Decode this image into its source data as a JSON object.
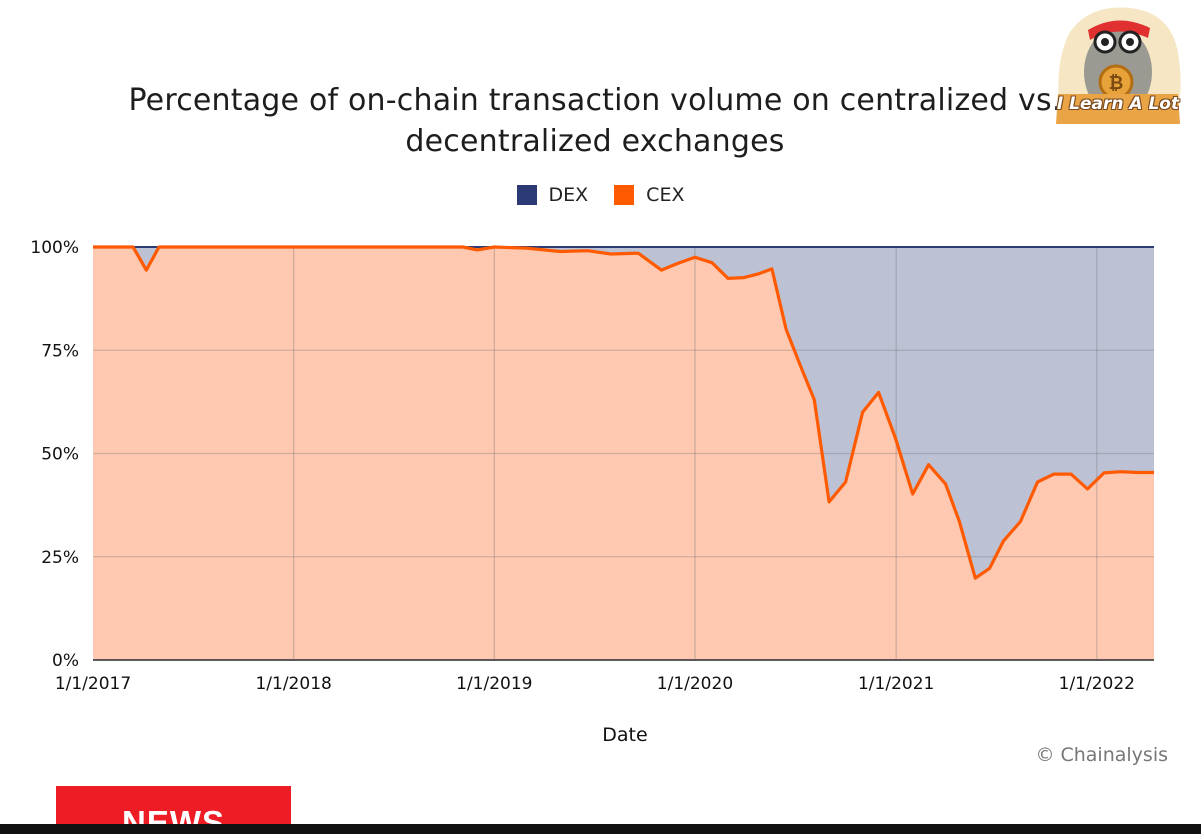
{
  "chart_data": {
    "type": "area",
    "title": "Percentage of on-chain transaction volume on centralized vs. decentralized exchanges",
    "xlabel": "Date",
    "ylabel": "",
    "x_tick_labels": [
      "1/1/2017",
      "1/1/2018",
      "1/1/2019",
      "1/1/2020",
      "1/1/2021",
      "1/1/2022"
    ],
    "y_tick_labels": [
      "100%",
      "75%",
      "50%",
      "25%",
      "0%"
    ],
    "y_ticks": [
      100,
      75,
      50,
      25,
      0
    ],
    "ylim": [
      0,
      100
    ],
    "xlim": [
      "2017-01-01",
      "2022-04-15"
    ],
    "stacked_percent": true,
    "grid": true,
    "legend_position": "top-center",
    "legend": [
      {
        "name": "DEX",
        "color": "#2b3a75",
        "fill": "#bcc2d4"
      },
      {
        "name": "CEX",
        "color": "#ff5a00",
        "fill": "#ffc8b0"
      }
    ],
    "series": [
      {
        "name": "CEX",
        "points": [
          [
            "2017-01-01",
            100
          ],
          [
            "2017-03-15",
            100
          ],
          [
            "2017-04-08",
            94.4
          ],
          [
            "2017-05-01",
            100
          ],
          [
            "2017-08-01",
            100
          ],
          [
            "2018-01-01",
            100
          ],
          [
            "2018-06-01",
            100
          ],
          [
            "2018-11-05",
            100
          ],
          [
            "2018-12-01",
            99.3
          ],
          [
            "2019-01-01",
            100
          ],
          [
            "2019-03-01",
            99.7
          ],
          [
            "2019-05-01",
            98.9
          ],
          [
            "2019-06-20",
            99.1
          ],
          [
            "2019-08-01",
            98.3
          ],
          [
            "2019-09-20",
            98.5
          ],
          [
            "2019-11-01",
            94.4
          ],
          [
            "2019-11-30",
            96.0
          ],
          [
            "2020-01-01",
            97.5
          ],
          [
            "2020-02-01",
            96.2
          ],
          [
            "2020-03-01",
            92.4
          ],
          [
            "2020-03-30",
            92.6
          ],
          [
            "2020-04-26",
            93.5
          ],
          [
            "2020-05-20",
            94.7
          ],
          [
            "2020-06-15",
            80.0
          ],
          [
            "2020-07-10",
            71.5
          ],
          [
            "2020-08-05",
            63.0
          ],
          [
            "2020-09-01",
            38.3
          ],
          [
            "2020-10-01",
            43.1
          ],
          [
            "2020-11-01",
            60.0
          ],
          [
            "2020-11-30",
            64.8
          ],
          [
            "2020-12-31",
            53.6
          ],
          [
            "2021-01-31",
            40.2
          ],
          [
            "2021-03-01",
            47.3
          ],
          [
            "2021-04-01",
            42.6
          ],
          [
            "2021-04-26",
            33.5
          ],
          [
            "2021-05-25",
            19.8
          ],
          [
            "2021-06-20",
            22.2
          ],
          [
            "2021-07-15",
            28.8
          ],
          [
            "2021-08-15",
            33.5
          ],
          [
            "2021-09-15",
            43.1
          ],
          [
            "2021-10-15",
            45.0
          ],
          [
            "2021-11-15",
            45.0
          ],
          [
            "2021-12-15",
            41.4
          ],
          [
            "2022-01-14",
            45.3
          ],
          [
            "2022-02-13",
            45.6
          ],
          [
            "2022-03-15",
            45.4
          ],
          [
            "2022-04-15",
            45.4
          ]
        ]
      },
      {
        "name": "DEX",
        "derived_from": "100 - CEX"
      }
    ]
  },
  "credit": "© Chainalysis",
  "banner": {
    "news_label": "NEWS"
  },
  "logo": {
    "text": "I Learn A Lot",
    "icon": "mascot-bitcoin-icon",
    "bg_color": "#f6e6c4"
  }
}
